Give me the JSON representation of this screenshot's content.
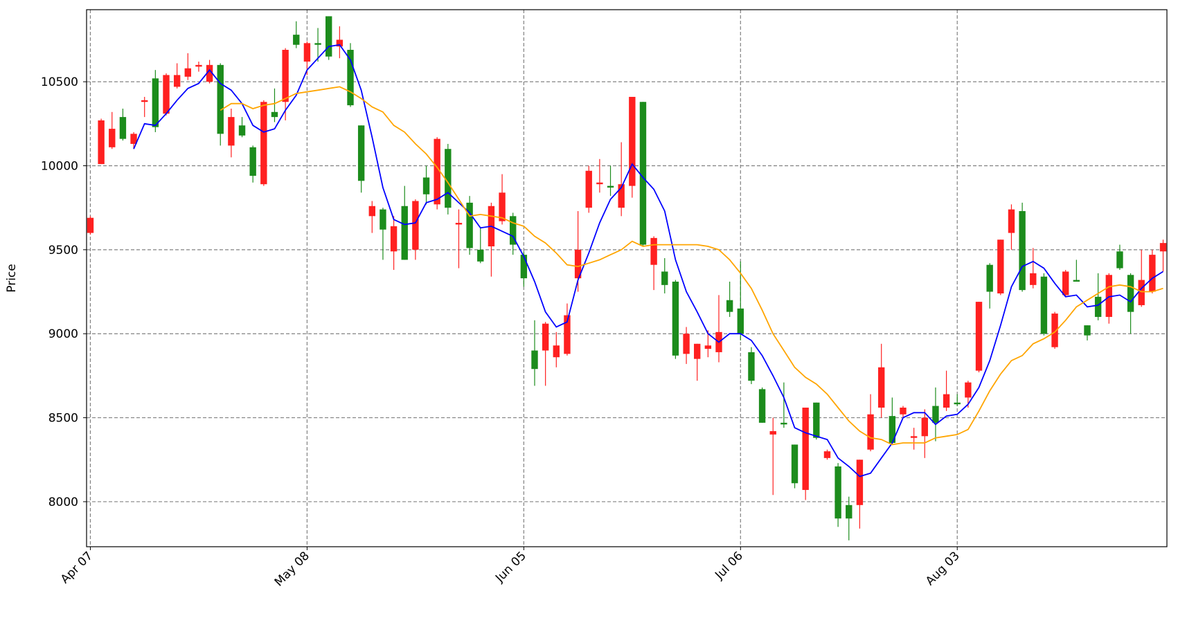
{
  "chart_data": {
    "type": "candlestick",
    "y_label": "Price",
    "categories": [
      "Apr 07",
      null,
      null,
      null,
      null,
      null,
      null,
      null,
      null,
      null,
      null,
      null,
      null,
      null,
      null,
      null,
      null,
      null,
      null,
      null,
      "May 08",
      null,
      null,
      null,
      null,
      null,
      null,
      null,
      null,
      null,
      null,
      null,
      null,
      null,
      null,
      null,
      null,
      null,
      null,
      null,
      "Jun 05",
      null,
      null,
      null,
      null,
      null,
      null,
      null,
      null,
      null,
      null,
      null,
      null,
      null,
      null,
      null,
      null,
      null,
      null,
      null,
      "Jul 06",
      null,
      null,
      null,
      null,
      null,
      null,
      null,
      null,
      null,
      null,
      null,
      null,
      null,
      null,
      null,
      null,
      null,
      null,
      null,
      "Aug 03",
      null,
      null,
      null,
      null,
      null,
      null,
      null,
      null,
      null,
      null,
      null,
      null,
      null,
      null,
      null,
      null,
      null,
      null,
      null
    ],
    "open": [
      9600,
      10010,
      10110,
      10290,
      10130,
      10380,
      10520,
      10310,
      10470,
      10530,
      10590,
      10500,
      10600,
      10120,
      10240,
      10110,
      9890,
      10320,
      10380,
      10780,
      10620,
      10730,
      10890,
      10710,
      10690,
      10240,
      9700,
      9740,
      9490,
      9760,
      9500,
      9930,
      9770,
      10100,
      9650,
      9780,
      9500,
      9520,
      9670,
      9700,
      9470,
      8900,
      8900,
      8860,
      8880,
      9330,
      9750,
      9890,
      9880,
      9750,
      9880,
      10380,
      9410,
      9370,
      9310,
      8880,
      8850,
      8910,
      8890,
      9200,
      9150,
      8890,
      8670,
      8400,
      8470,
      8340,
      8070,
      8590,
      8260,
      8210,
      7980,
      7980,
      8310,
      8560,
      8510,
      8520,
      8380,
      8390,
      8570,
      8560,
      8590,
      8620,
      8780,
      9410,
      9240,
      9600,
      9730,
      9290,
      9340,
      8920,
      9230,
      9320,
      9050,
      9220,
      9100,
      9490,
      9350,
      9170,
      9250,
      9490
    ],
    "high": [
      9700,
      10280,
      10320,
      10340,
      10200,
      10410,
      10570,
      10550,
      10610,
      10670,
      10620,
      10630,
      10610,
      10340,
      10290,
      10120,
      10390,
      10460,
      10700,
      10860,
      10740,
      10820,
      10890,
      10830,
      10730,
      10240,
      9790,
      9750,
      9700,
      9880,
      9800,
      10000,
      10170,
      10130,
      9740,
      9820,
      9630,
      9780,
      9950,
      9720,
      9490,
      9080,
      9070,
      9010,
      9180,
      9730,
      10000,
      10040,
      10000,
      10140,
      10410,
      10380,
      9580,
      9450,
      9320,
      9040,
      8940,
      9020,
      9230,
      9310,
      9430,
      8920,
      8680,
      8500,
      8710,
      8340,
      8560,
      8590,
      8310,
      8230,
      8030,
      8250,
      8640,
      8940,
      8620,
      8570,
      8440,
      8550,
      8680,
      8780,
      8640,
      8720,
      9190,
      9420,
      9560,
      9770,
      9780,
      9510,
      9360,
      9130,
      9380,
      9440,
      9050,
      9360,
      9360,
      9530,
      9360,
      9500,
      9500,
      9560
    ],
    "low": [
      9590,
      10010,
      10100,
      10150,
      10100,
      10290,
      10200,
      10300,
      10460,
      10510,
      10560,
      10490,
      10120,
      10050,
      10170,
      9900,
      9880,
      10260,
      10270,
      10700,
      10540,
      10620,
      10630,
      10640,
      10350,
      9840,
      9600,
      9440,
      9380,
      9440,
      9440,
      9770,
      9740,
      9710,
      9390,
      9470,
      9420,
      9340,
      9650,
      9470,
      9280,
      8690,
      8690,
      8800,
      8870,
      9250,
      9720,
      9840,
      9820,
      9700,
      9810,
      9520,
      9260,
      9240,
      8850,
      8820,
      8720,
      8860,
      8830,
      9100,
      8960,
      8700,
      8470,
      8040,
      8440,
      8080,
      8010,
      8370,
      8250,
      7850,
      7770,
      7840,
      8300,
      8500,
      8340,
      8500,
      8310,
      8260,
      8360,
      8540,
      8570,
      8560,
      8770,
      9150,
      9230,
      9500,
      9250,
      9270,
      8990,
      8910,
      9220,
      9310,
      8960,
      9080,
      9060,
      9380,
      9000,
      9160,
      9240,
      9370
    ],
    "close": [
      9690,
      10270,
      10220,
      10160,
      10190,
      10390,
      10230,
      10540,
      10540,
      10580,
      10600,
      10600,
      10190,
      10290,
      10180,
      9940,
      10380,
      10290,
      10690,
      10720,
      10730,
      10720,
      10650,
      10750,
      10360,
      9910,
      9760,
      9620,
      9640,
      9440,
      9790,
      9830,
      10160,
      9750,
      9660,
      9510,
      9430,
      9760,
      9840,
      9530,
      9330,
      8790,
      9060,
      8930,
      9110,
      9500,
      9970,
      9900,
      9870,
      9890,
      10410,
      9530,
      9570,
      9290,
      8870,
      9000,
      8940,
      8930,
      9010,
      9130,
      9000,
      8720,
      8470,
      8420,
      8460,
      8110,
      8560,
      8380,
      8300,
      7900,
      7900,
      8250,
      8520,
      8800,
      8350,
      8560,
      8390,
      8500,
      8470,
      8640,
      8580,
      8710,
      9190,
      9250,
      9560,
      9740,
      9260,
      9360,
      9000,
      9120,
      9370,
      9310,
      8990,
      9100,
      9350,
      9390,
      9130,
      9320,
      9470,
      9540
    ],
    "up_color": "#ff2020",
    "down_color": "#1c8c1c",
    "lines": [
      {
        "color": "#0000ff",
        "values": [
          null,
          null,
          null,
          null,
          10100,
          10250,
          10240,
          10310,
          10390,
          10460,
          10490,
          10570,
          10490,
          10450,
          10370,
          10240,
          10200,
          10220,
          10330,
          10420,
          10570,
          10640,
          10710,
          10720,
          10630,
          10450,
          10170,
          9870,
          9680,
          9650,
          9660,
          9780,
          9800,
          9840,
          9780,
          9720,
          9630,
          9640,
          9610,
          9580,
          9460,
          9310,
          9130,
          9040,
          9070,
          9320,
          9480,
          9660,
          9800,
          9870,
          10010,
          9930,
          9860,
          9730,
          9440,
          9250,
          9130,
          9000,
          8950,
          9000,
          9000,
          8960,
          8870,
          8750,
          8620,
          8440,
          8410,
          8390,
          8370,
          8260,
          8210,
          8150,
          8170,
          8260,
          8350,
          8500,
          8530,
          8530,
          8460,
          8510,
          8520,
          8580,
          8680,
          8840,
          9050,
          9280,
          9400,
          9430,
          9390,
          9300,
          9220,
          9230,
          9160,
          9170,
          9220,
          9230,
          9190,
          9270,
          9330,
          9370
        ]
      },
      {
        "color": "#ffa500",
        "values": [
          null,
          null,
          null,
          null,
          null,
          null,
          null,
          null,
          null,
          null,
          null,
          null,
          10330,
          10370,
          10370,
          10340,
          10360,
          10370,
          10400,
          10430,
          10440,
          10450,
          10460,
          10470,
          10440,
          10400,
          10350,
          10320,
          10240,
          10200,
          10130,
          10070,
          9990,
          9900,
          9800,
          9700,
          9710,
          9700,
          9690,
          9660,
          9640,
          9580,
          9540,
          9480,
          9410,
          9400,
          9420,
          9440,
          9470,
          9500,
          9550,
          9520,
          9530,
          9530,
          9530,
          9530,
          9530,
          9520,
          9500,
          9440,
          9360,
          9270,
          9140,
          9000,
          8900,
          8800,
          8740,
          8700,
          8640,
          8560,
          8480,
          8420,
          8380,
          8370,
          8340,
          8350,
          8350,
          8350,
          8380,
          8390,
          8400,
          8430,
          8540,
          8660,
          8760,
          8840,
          8870,
          8940,
          8970,
          9010,
          9080,
          9160,
          9200,
          9240,
          9280,
          9290,
          9280,
          9250,
          9250,
          9270
        ]
      }
    ],
    "ylim": [
      7732,
      10929
    ],
    "yticks": [
      8000,
      8500,
      9000,
      9500,
      10000,
      10500
    ],
    "grid": true
  }
}
